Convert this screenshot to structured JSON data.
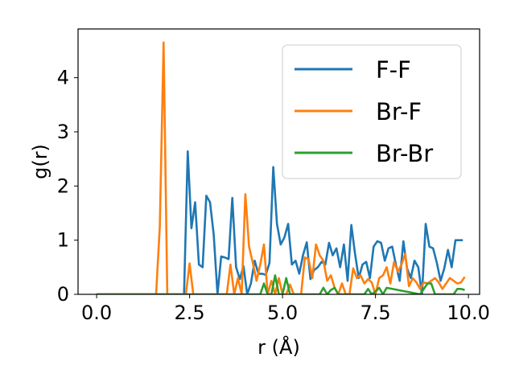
{
  "chart_data": {
    "type": "line",
    "title": "",
    "xlabel": "r (Å)",
    "ylabel": "g(r)",
    "xlim": [
      -0.5,
      10.3
    ],
    "ylim": [
      0,
      4.9
    ],
    "xticks": [
      0.0,
      2.5,
      5.0,
      7.5,
      10.0
    ],
    "xtick_labels": [
      "0.0",
      "2.5",
      "5.0",
      "7.5",
      "10.0"
    ],
    "yticks": [
      0,
      1,
      2,
      3,
      4
    ],
    "ytick_labels": [
      "0",
      "1",
      "2",
      "3",
      "4"
    ],
    "grid": false,
    "legend": "top-right",
    "series": [
      {
        "name": "F-F",
        "color": "#1f77b4",
        "x": [
          0.0,
          2.35,
          2.45,
          2.55,
          2.65,
          2.75,
          2.85,
          2.95,
          3.05,
          3.15,
          3.25,
          3.35,
          3.45,
          3.55,
          3.65,
          3.75,
          3.85,
          3.95,
          4.05,
          4.15,
          4.25,
          4.35,
          4.45,
          4.55,
          4.65,
          4.75,
          4.85,
          4.95,
          5.05,
          5.15,
          5.25,
          5.35,
          5.45,
          5.55,
          5.65,
          5.75,
          5.85,
          5.95,
          6.05,
          6.15,
          6.25,
          6.35,
          6.45,
          6.55,
          6.65,
          6.75,
          6.85,
          6.95,
          7.05,
          7.15,
          7.25,
          7.35,
          7.45,
          7.55,
          7.65,
          7.75,
          7.85,
          7.95,
          8.05,
          8.15,
          8.25,
          8.35,
          8.45,
          8.55,
          8.65,
          8.75,
          8.85,
          8.95,
          9.05,
          9.15,
          9.25,
          9.35,
          9.45,
          9.55,
          9.65,
          9.75,
          9.85
        ],
        "values": [
          0,
          0,
          2.64,
          1.22,
          1.7,
          0.55,
          0.5,
          1.82,
          1.7,
          1.1,
          0,
          0.7,
          0.68,
          0.65,
          1.78,
          0.5,
          0.28,
          0.52,
          0,
          0.2,
          0.62,
          0.38,
          0.38,
          0.36,
          0.58,
          2.35,
          1.3,
          0.92,
          1.05,
          1.3,
          0.55,
          0.62,
          0.38,
          0.72,
          0.96,
          0.28,
          0.45,
          0.5,
          0.6,
          0.55,
          0.95,
          0.72,
          0.85,
          0.5,
          0.92,
          0.25,
          1.28,
          0.75,
          0.3,
          0.55,
          0.6,
          0.3,
          0.88,
          0.98,
          0.95,
          0.62,
          0.85,
          0.88,
          0.55,
          0.25,
          0.98,
          0.48,
          0.3,
          0.62,
          0.5,
          0,
          1.3,
          0.88,
          0.85,
          0.58,
          0.25,
          0.48,
          0.82,
          0.5,
          1.0,
          1.0,
          1.0
        ]
      },
      {
        "name": "Br-F",
        "color": "#ff7f0e",
        "x": [
          0.0,
          1.6,
          1.7,
          1.8,
          1.9,
          2.0,
          2.4,
          2.5,
          2.6,
          2.7,
          3.5,
          3.6,
          3.7,
          3.8,
          3.9,
          4.0,
          4.1,
          4.2,
          4.3,
          4.4,
          4.5,
          4.6,
          4.7,
          4.8,
          4.9,
          5.0,
          5.1,
          5.2,
          5.3,
          5.4,
          5.5,
          5.6,
          5.7,
          5.8,
          5.9,
          6.0,
          6.1,
          6.2,
          6.3,
          6.4,
          6.5,
          6.6,
          6.7,
          6.8,
          6.9,
          7.0,
          7.1,
          7.2,
          7.3,
          7.4,
          7.5,
          7.6,
          7.7,
          7.8,
          7.9,
          8.0,
          8.1,
          8.2,
          8.3,
          8.4,
          8.5,
          8.6,
          8.7,
          8.8,
          8.9,
          9.0,
          9.1,
          9.2,
          9.3,
          9.4,
          9.5,
          9.6,
          9.7,
          9.8,
          9.9
        ],
        "values": [
          0,
          0,
          1.25,
          4.65,
          0,
          0,
          0,
          0.57,
          0,
          0,
          0,
          0.55,
          0,
          0.3,
          0,
          1.85,
          0.88,
          0.58,
          0.25,
          0.55,
          0.92,
          0,
          0.25,
          0,
          0.3,
          0,
          0,
          0.18,
          0,
          0,
          0,
          0.68,
          0.65,
          0.3,
          0.92,
          0.72,
          0.62,
          0.25,
          0.35,
          0.12,
          0,
          0.2,
          0,
          0,
          0.48,
          0.3,
          0.35,
          0.2,
          0.28,
          0.22,
          0,
          0.3,
          0.35,
          0.5,
          0.2,
          0.6,
          0.42,
          0.55,
          0.75,
          0.15,
          0.3,
          0.22,
          0.1,
          0.22,
          0.2,
          0.25,
          0.3,
          0.22,
          0.1,
          0.2,
          0.3,
          0.25,
          0.2,
          0.22,
          0.32
        ]
      },
      {
        "name": "Br-Br",
        "color": "#2ca02c",
        "x": [
          0.0,
          4.4,
          4.5,
          4.6,
          4.7,
          4.8,
          4.9,
          5.0,
          5.1,
          5.2,
          6.0,
          6.1,
          6.2,
          6.3,
          6.4,
          6.5,
          7.2,
          7.3,
          7.4,
          7.5,
          7.6,
          7.7,
          7.8,
          8.7,
          8.8,
          8.9,
          9.0,
          9.1,
          9.6,
          9.7,
          9.8,
          9.9
        ],
        "values": [
          0,
          0,
          0.2,
          0,
          0,
          0.35,
          0,
          0,
          0.3,
          0,
          0,
          0.12,
          0,
          0.08,
          0.12,
          0,
          0,
          0.1,
          0,
          0.05,
          0.12,
          0,
          0.12,
          0,
          0.1,
          0.2,
          0.2,
          0,
          0,
          0.1,
          0.1,
          0.08
        ]
      }
    ]
  }
}
